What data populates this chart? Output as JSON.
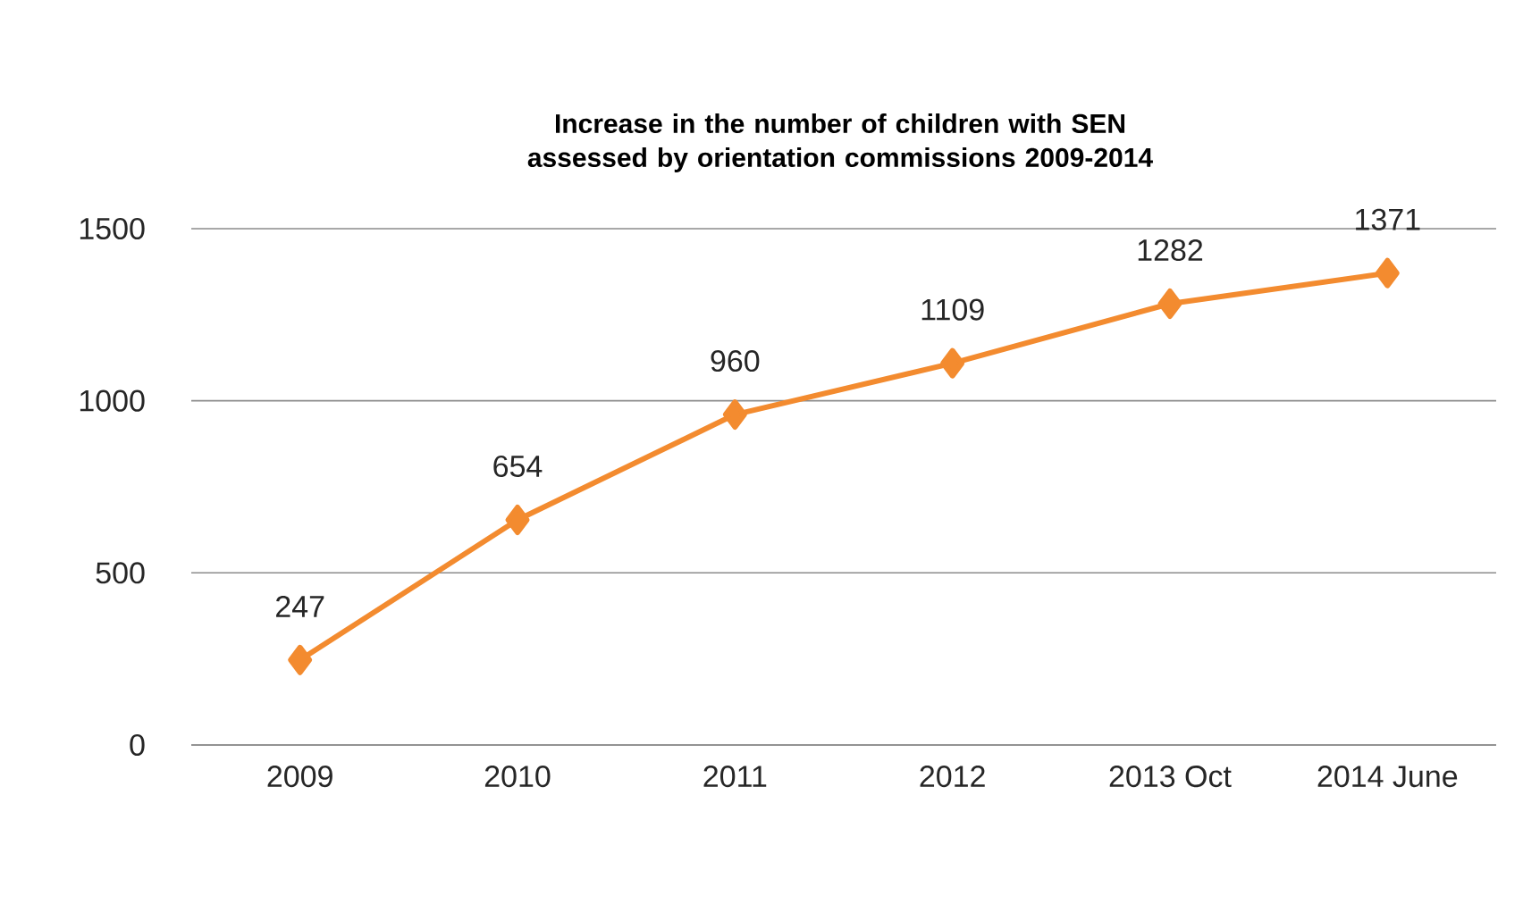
{
  "chart_data": {
    "type": "line",
    "title": "Increase in the number of children with SEN assessed by orientation commissions 2009-2014",
    "categories": [
      "2009",
      "2010",
      "2011",
      "2012",
      "2013 Oct",
      "2014 June"
    ],
    "values": [
      247,
      654,
      960,
      1109,
      1282,
      1371
    ],
    "color": "#f38b2f",
    "ylim": [
      0,
      1500
    ],
    "yticks": [
      0,
      500,
      1000,
      1500
    ],
    "grid": "y",
    "marker": "diamond",
    "line_style": "solid",
    "data_labels": true
  }
}
